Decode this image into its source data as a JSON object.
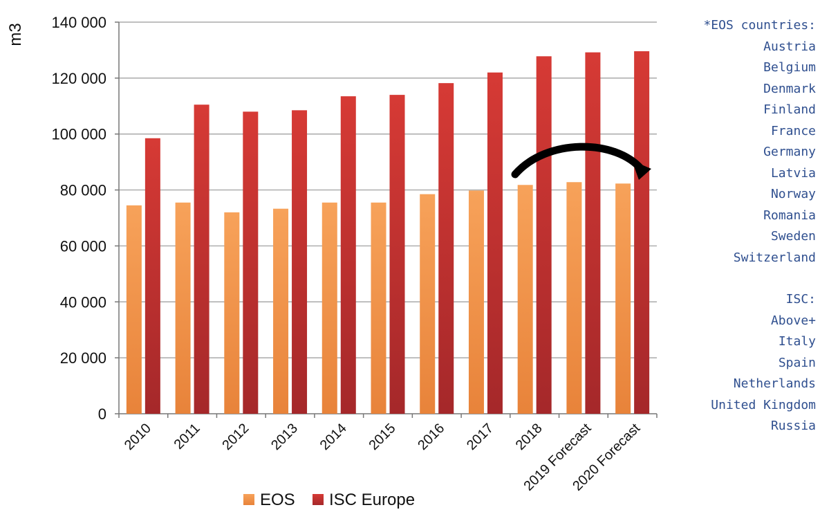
{
  "chart_data": {
    "type": "bar",
    "ylabel": "m3",
    "ylim": [
      0,
      140000
    ],
    "yticks": [
      "0",
      "20 000",
      "40 000",
      "60 000",
      "80 000",
      "100 000",
      "120 000",
      "140 000"
    ],
    "ytick_values": [
      0,
      20000,
      40000,
      60000,
      80000,
      100000,
      120000,
      140000
    ],
    "grid": true,
    "legend_position": "bottom",
    "categories": [
      "2010",
      "2011",
      "2012",
      "2013",
      "2014",
      "2015",
      "2016",
      "2017",
      "2018",
      "2019 Forecast",
      "2020 Forecast"
    ],
    "series": [
      {
        "name": "EOS",
        "color": "#f4994a",
        "values": [
          74500,
          75500,
          72000,
          73300,
          75500,
          75500,
          78500,
          79800,
          81800,
          82800,
          82300
        ]
      },
      {
        "name": "ISC Europe",
        "color": "#c8332f",
        "values": [
          98500,
          110500,
          108000,
          108500,
          113500,
          114000,
          118200,
          122000,
          127800,
          129200,
          129600
        ]
      }
    ],
    "annotations": [
      {
        "type": "curved-arrow",
        "from_category": "2018",
        "to_category": "2020 Forecast",
        "color": "#000000"
      }
    ]
  },
  "side_panel": {
    "eos_heading": "*EOS countries:",
    "eos_countries": [
      "Austria",
      "Belgium",
      "Denmark",
      "Finland",
      "France",
      "Germany",
      "Latvia",
      "Norway",
      "Romania",
      "Sweden",
      "Switzerland"
    ],
    "isc_heading": "ISC:",
    "isc_members": [
      "Above+",
      "Italy",
      "Spain",
      "Netherlands",
      "United Kingdom",
      "Russia"
    ],
    "text_color": "#2f4f8f"
  }
}
